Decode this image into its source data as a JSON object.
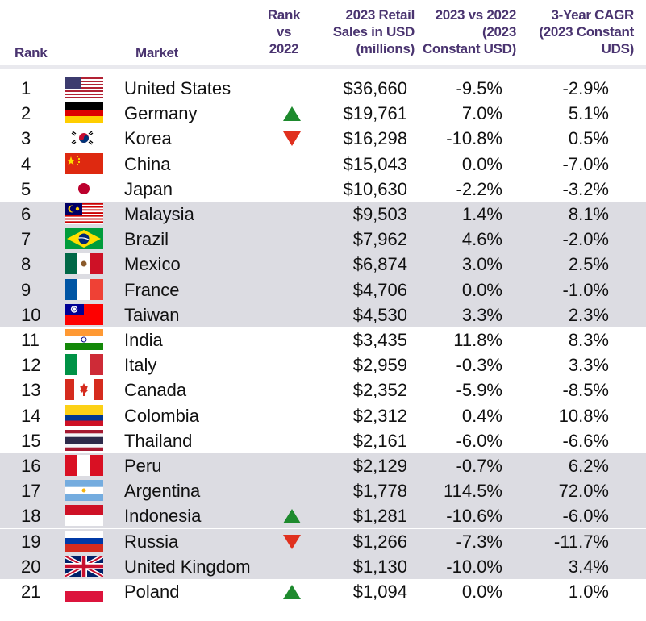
{
  "header": {
    "rank": "Rank",
    "market": "Market",
    "rank_vs": [
      "Rank",
      "vs",
      "2022"
    ],
    "sales": [
      "2023 Retail",
      "Sales in USD",
      "(millions)"
    ],
    "yoy": [
      "2023 vs 2022",
      "(2023",
      "Constant USD)"
    ],
    "cagr": [
      "3-Year CAGR",
      "(2023 Constant",
      "UDS)"
    ]
  },
  "colors": {
    "header_text": "#4a3470",
    "shade": "#dcdce2",
    "up": "#1e8a2e",
    "down": "#e0301e"
  },
  "rows": [
    {
      "rank": "1",
      "market": "United States",
      "flag": "us-flag-icon",
      "change": "",
      "sales": "$36,660",
      "yoy": "-9.5%",
      "cagr": "-2.9%"
    },
    {
      "rank": "2",
      "market": "Germany",
      "flag": "germany-flag-icon",
      "change": "up",
      "sales": "$19,761",
      "yoy": "7.0%",
      "cagr": "5.1%"
    },
    {
      "rank": "3",
      "market": "Korea",
      "flag": "korea-flag-icon",
      "change": "down",
      "sales": "$16,298",
      "yoy": "-10.8%",
      "cagr": "0.5%"
    },
    {
      "rank": "4",
      "market": "China",
      "flag": "china-flag-icon",
      "change": "",
      "sales": "$15,043",
      "yoy": "0.0%",
      "cagr": "-7.0%"
    },
    {
      "rank": "5",
      "market": "Japan",
      "flag": "japan-flag-icon",
      "change": "",
      "sales": "$10,630",
      "yoy": "-2.2%",
      "cagr": "-3.2%"
    },
    {
      "rank": "6",
      "market": "Malaysia",
      "flag": "malaysia-flag-icon",
      "change": "",
      "sales": "$9,503",
      "yoy": "1.4%",
      "cagr": "8.1%"
    },
    {
      "rank": "7",
      "market": "Brazil",
      "flag": "brazil-flag-icon",
      "change": "",
      "sales": "$7,962",
      "yoy": "4.6%",
      "cagr": "-2.0%"
    },
    {
      "rank": "8",
      "market": "Mexico",
      "flag": "mexico-flag-icon",
      "change": "",
      "sales": "$6,874",
      "yoy": "3.0%",
      "cagr": "2.5%"
    },
    {
      "rank": "9",
      "market": "France",
      "flag": "france-flag-icon",
      "change": "",
      "sales": "$4,706",
      "yoy": "0.0%",
      "cagr": "-1.0%"
    },
    {
      "rank": "10",
      "market": "Taiwan",
      "flag": "taiwan-flag-icon",
      "change": "",
      "sales": "$4,530",
      "yoy": "3.3%",
      "cagr": "2.3%"
    },
    {
      "rank": "11",
      "market": "India",
      "flag": "india-flag-icon",
      "change": "",
      "sales": "$3,435",
      "yoy": "11.8%",
      "cagr": "8.3%"
    },
    {
      "rank": "12",
      "market": "Italy",
      "flag": "italy-flag-icon",
      "change": "",
      "sales": "$2,959",
      "yoy": "-0.3%",
      "cagr": "3.3%"
    },
    {
      "rank": "13",
      "market": "Canada",
      "flag": "canada-flag-icon",
      "change": "",
      "sales": "$2,352",
      "yoy": "-5.9%",
      "cagr": "-8.5%"
    },
    {
      "rank": "14",
      "market": "Colombia",
      "flag": "colombia-flag-icon",
      "change": "",
      "sales": "$2,312",
      "yoy": "0.4%",
      "cagr": "10.8%"
    },
    {
      "rank": "15",
      "market": "Thailand",
      "flag": "thailand-flag-icon",
      "change": "",
      "sales": "$2,161",
      "yoy": "-6.0%",
      "cagr": "-6.6%"
    },
    {
      "rank": "16",
      "market": "Peru",
      "flag": "peru-flag-icon",
      "change": "",
      "sales": "$2,129",
      "yoy": "-0.7%",
      "cagr": "6.2%"
    },
    {
      "rank": "17",
      "market": "Argentina",
      "flag": "argentina-flag-icon",
      "change": "",
      "sales": "$1,778",
      "yoy": "114.5%",
      "cagr": "72.0%"
    },
    {
      "rank": "18",
      "market": "Indonesia",
      "flag": "indonesia-flag-icon",
      "change": "up",
      "sales": "$1,281",
      "yoy": "-10.6%",
      "cagr": "-6.0%"
    },
    {
      "rank": "19",
      "market": "Russia",
      "flag": "russia-flag-icon",
      "change": "down",
      "sales": "$1,266",
      "yoy": "-7.3%",
      "cagr": "-11.7%"
    },
    {
      "rank": "20",
      "market": "United Kingdom",
      "flag": "uk-flag-icon",
      "change": "",
      "sales": "$1,130",
      "yoy": "-10.0%",
      "cagr": "3.4%"
    },
    {
      "rank": "21",
      "market": "Poland",
      "flag": "poland-flag-icon",
      "change": "up",
      "sales": "$1,094",
      "yoy": "0.0%",
      "cagr": "1.0%"
    }
  ],
  "chart_data": {
    "type": "table",
    "columns": [
      "Rank",
      "Market",
      "Rank vs 2022",
      "2023 Retail Sales in USD (millions)",
      "2023 vs 2022 (2023 Constant USD)",
      "3-Year CAGR (2023 Constant UDS)"
    ],
    "rank": [
      1,
      2,
      3,
      4,
      5,
      6,
      7,
      8,
      9,
      10,
      11,
      12,
      13,
      14,
      15,
      16,
      17,
      18,
      19,
      20,
      21
    ],
    "market": [
      "United States",
      "Germany",
      "Korea",
      "China",
      "Japan",
      "Malaysia",
      "Brazil",
      "Mexico",
      "France",
      "Taiwan",
      "India",
      "Italy",
      "Canada",
      "Colombia",
      "Thailand",
      "Peru",
      "Argentina",
      "Indonesia",
      "Russia",
      "United Kingdom",
      "Poland"
    ],
    "rank_change": [
      "",
      "up",
      "down",
      "",
      "",
      "",
      "",
      "",
      "",
      "",
      "",
      "",
      "",
      "",
      "",
      "",
      "",
      "up",
      "down",
      "",
      "up"
    ],
    "sales_usd_millions": [
      36660,
      19761,
      16298,
      15043,
      10630,
      9503,
      7962,
      6874,
      4706,
      4530,
      3435,
      2959,
      2352,
      2312,
      2161,
      2129,
      1778,
      1281,
      1266,
      1130,
      1094
    ],
    "yoy_pct": [
      -9.5,
      7.0,
      -10.8,
      0.0,
      -2.2,
      1.4,
      4.6,
      3.0,
      0.0,
      3.3,
      11.8,
      -0.3,
      -5.9,
      0.4,
      -6.0,
      -0.7,
      114.5,
      -10.6,
      -7.3,
      -10.0,
      0.0
    ],
    "cagr_3yr_pct": [
      -2.9,
      5.1,
      0.5,
      -7.0,
      -3.2,
      8.1,
      -2.0,
      2.5,
      -1.0,
      2.3,
      8.3,
      3.3,
      -8.5,
      10.8,
      -6.6,
      6.2,
      72.0,
      -6.0,
      -11.7,
      3.4,
      1.0
    ]
  }
}
